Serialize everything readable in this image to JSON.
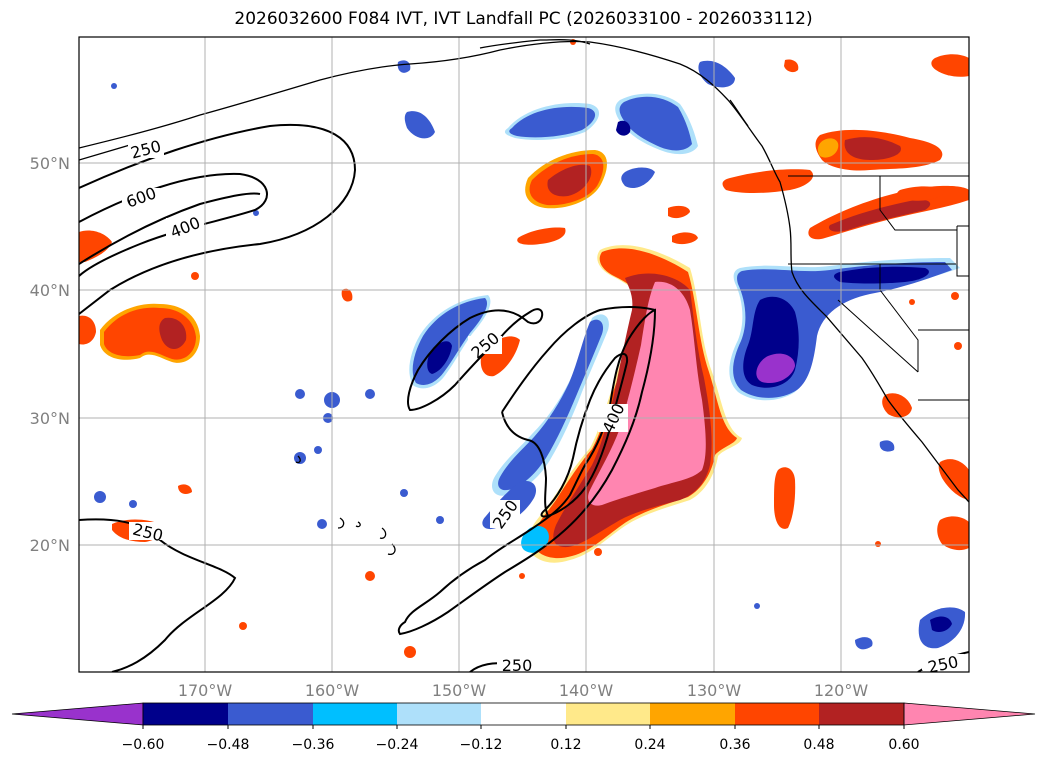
{
  "title": "2026032600 F084 IVT, IVT Landfall PC (2026033100 - 2026033112)",
  "axes": {
    "lat_labels": [
      "50°N",
      "40°N",
      "30°N",
      "20°N"
    ],
    "lon_labels": [
      "170°W",
      "160°W",
      "150°W",
      "140°W",
      "130°W",
      "120°W"
    ]
  },
  "contour_labels": [
    "250",
    "600",
    "400",
    "250",
    "400",
    "250",
    "250",
    "250",
    "250"
  ],
  "colorbar": {
    "ticks": [
      "−0.60",
      "−0.48",
      "−0.36",
      "−0.24",
      "−0.12",
      "0.12",
      "0.24",
      "0.36",
      "0.48",
      "0.60"
    ],
    "colors": {
      "under": "#9932cc",
      "bins": [
        "#00008b",
        "#3a5bd0",
        "#00bfff",
        "#aee0fa",
        "#ffffff",
        "#ffe98a",
        "#ffa500",
        "#ff4500",
        "#b22222"
      ],
      "over": "#ff85b0"
    }
  },
  "colors": {
    "purple": "#9932cc",
    "navy": "#00008b",
    "royal": "#3a5bd0",
    "sky": "#00bfff",
    "pale_blue": "#aee0fa",
    "yellow": "#ffe98a",
    "orange": "#ffa500",
    "red_orange": "#ff4500",
    "firebrick": "#b22222",
    "pink": "#ff85b0"
  }
}
